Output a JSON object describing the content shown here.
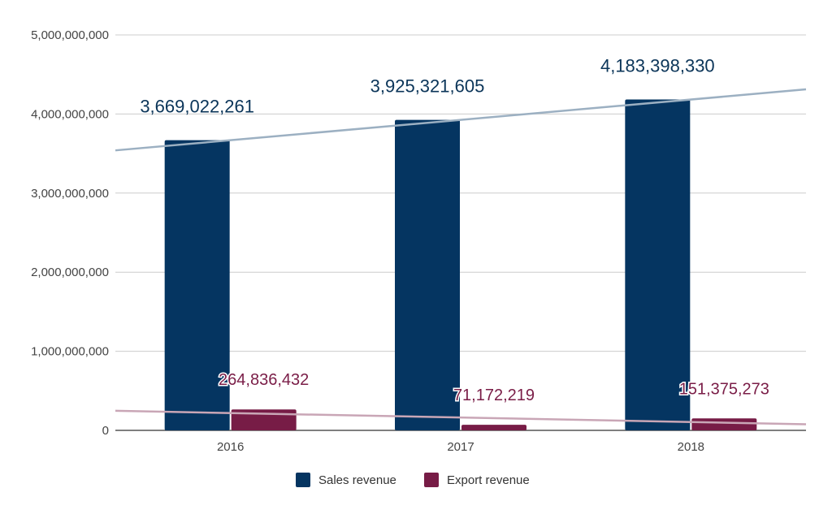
{
  "chart_data": {
    "type": "bar",
    "categories": [
      "2016",
      "2017",
      "2018"
    ],
    "series": [
      {
        "name": "Sales revenue",
        "values": [
          3669022261,
          3925321605,
          4183398330
        ],
        "color": "#053561",
        "labels": [
          "3,669,022,261",
          "3,925,321,605",
          "4,183,398,330"
        ]
      },
      {
        "name": "Export revenue",
        "values": [
          264836432,
          71172219,
          151375273
        ],
        "color": "#771c46",
        "labels": [
          "264,836,432",
          "71,172,219",
          "151,375,273"
        ]
      }
    ],
    "y_ticks": [
      {
        "value": 0,
        "label": "0"
      },
      {
        "value": 1000000000,
        "label": "1,000,000,000"
      },
      {
        "value": 2000000000,
        "label": "2,000,000,000"
      },
      {
        "value": 3000000000,
        "label": "3,000,000,000"
      },
      {
        "value": 4000000000,
        "label": "4,000,000,000"
      },
      {
        "value": 5000000000,
        "label": "5,000,000,000"
      }
    ],
    "ylim": [
      0,
      5000000000
    ],
    "grid": true,
    "trendlines": true,
    "trendline_colors": [
      "#9cb0c2",
      "#c9a6b6"
    ],
    "legend": "bottom",
    "title": "",
    "xlabel": "",
    "ylabel": ""
  }
}
